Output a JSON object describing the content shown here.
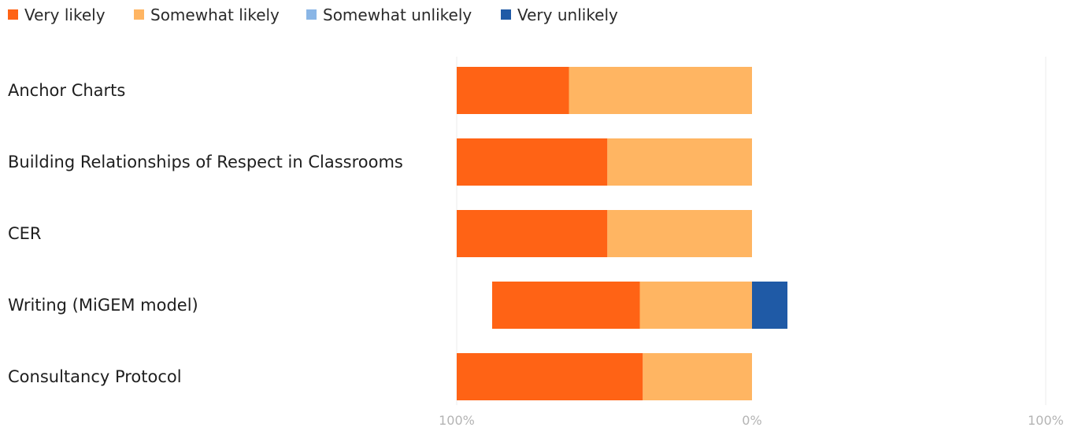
{
  "chart_data": {
    "type": "bar",
    "orientation": "horizontal",
    "stacking": "diverging",
    "categories": [
      "Anchor Charts",
      "Building Relationships of Respect in Classrooms",
      "CER",
      "Writing (MiGEM model)",
      "Consultancy Protocol"
    ],
    "series": [
      {
        "name": "Very likely",
        "side": "left",
        "color": "#ff6315",
        "values": [
          38,
          51,
          51,
          50,
          63
        ]
      },
      {
        "name": "Somewhat likely",
        "side": "left",
        "color": "#ffb562",
        "values": [
          62,
          49,
          49,
          38,
          37
        ]
      },
      {
        "name": "Somewhat unlikely",
        "side": "right",
        "color": "#8ab6e6",
        "values": [
          0,
          0,
          0,
          0,
          0
        ]
      },
      {
        "name": "Very unlikely",
        "side": "right",
        "color": "#1f5aa6",
        "values": [
          0,
          0,
          0,
          12,
          0
        ]
      }
    ],
    "xlim": [
      -100,
      100
    ],
    "xticks": [
      "100%",
      "0%",
      "100%"
    ],
    "legend_position": "top-left",
    "grid": false
  }
}
